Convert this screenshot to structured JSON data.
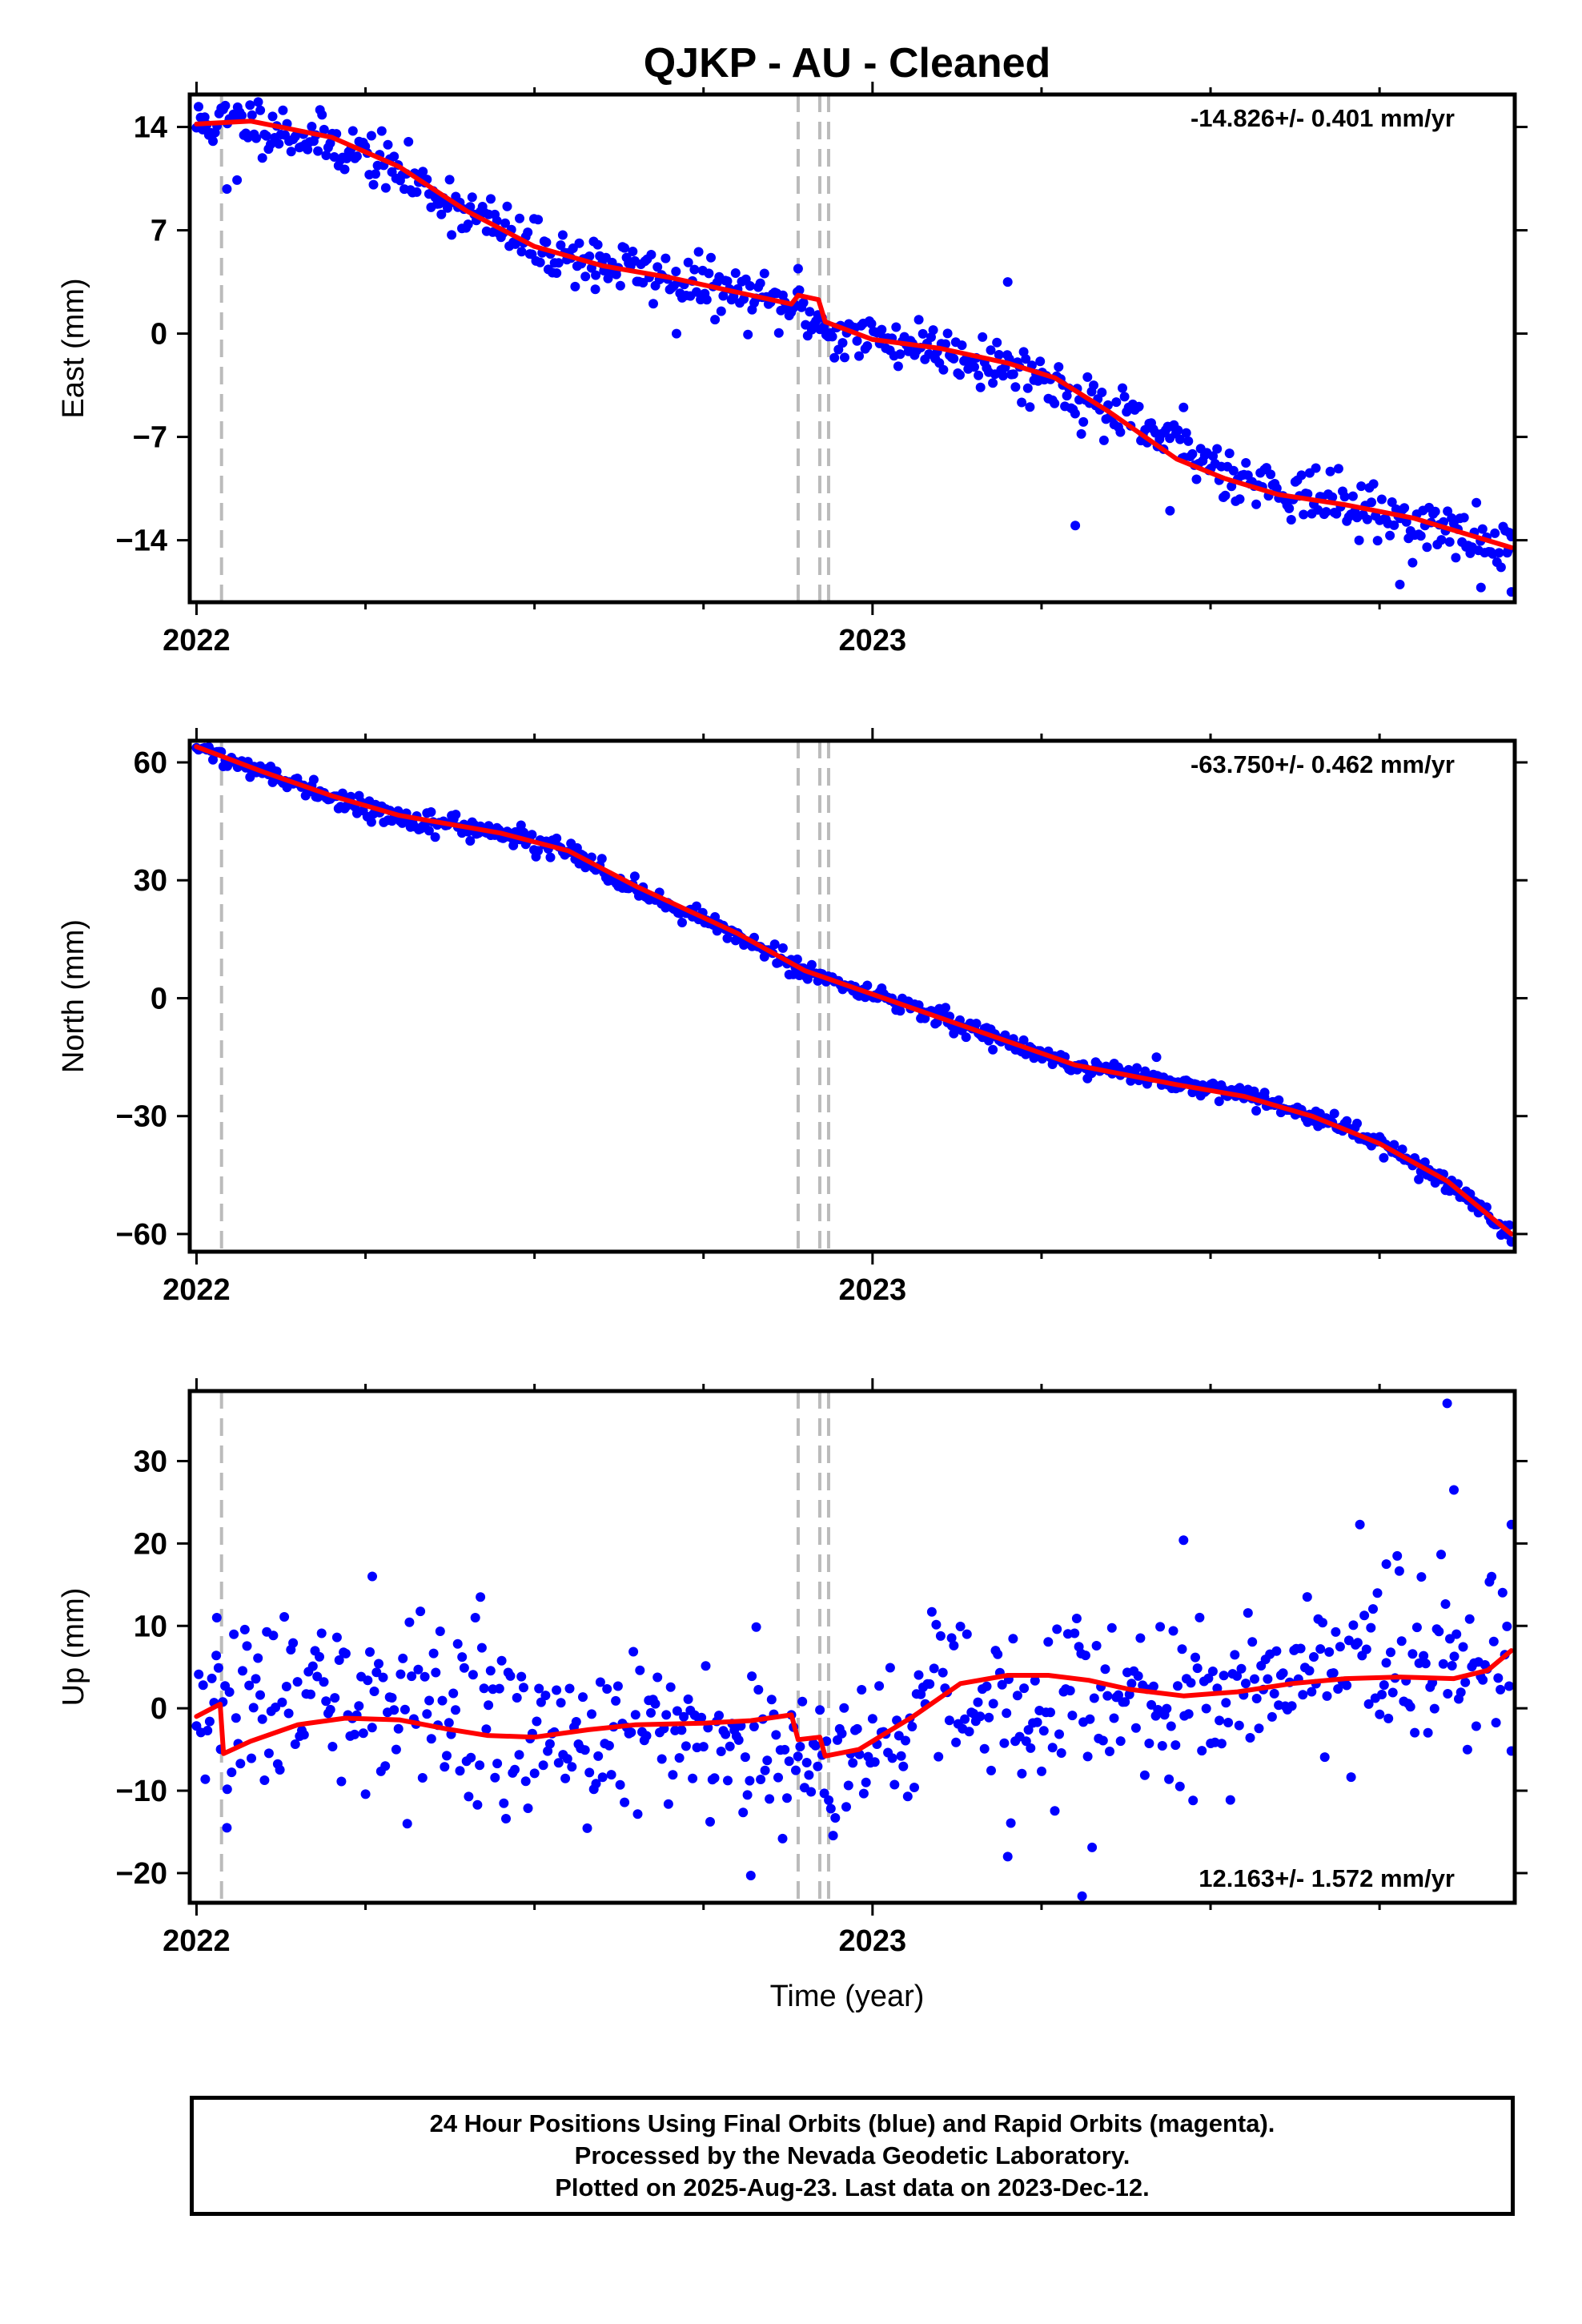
{
  "title": "QJKP  - AU - Cleaned",
  "xlabel": "Time (year)",
  "footer": {
    "line1": "24 Hour Positions Using Final Orbits (blue) and Rapid Orbits (magenta).",
    "line2": "Processed by the Nevada Geodetic Laboratory.",
    "line3": "Plotted on 2025-Aug-23. Last data on 2023-Dec-12."
  },
  "colors": {
    "final_orbits": "#0000ff",
    "model": "#ff0000",
    "event_lines": "#bbbbbb",
    "axes": "#000000"
  },
  "chart_data": [
    {
      "type": "scatter",
      "component": "east",
      "ylabel": "East (mm)",
      "rate_label": "-14.826+/- 0.401 mm/yr",
      "xlim": [
        2021.99,
        2023.95
      ],
      "ylim": [
        -18.2,
        16.2
      ],
      "yticks": [
        14,
        7,
        0,
        -7,
        -14
      ],
      "xticks": [
        2022,
        2023
      ],
      "event_lines": [
        2022.037,
        2022.89,
        2022.922,
        2022.935
      ],
      "rate": -14.826,
      "series": [
        {
          "kind": "points",
          "x_start": 2022.0,
          "x_end": 2023.945,
          "n": 640,
          "anchors": [
            [
              2022.0,
              14.2
            ],
            [
              2022.08,
              14.4
            ],
            [
              2022.25,
              12.2
            ],
            [
              2022.35,
              9.6
            ],
            [
              2022.5,
              5.8
            ],
            [
              2022.7,
              3.8
            ],
            [
              2022.9,
              1.5
            ],
            [
              2022.94,
              0.0
            ],
            [
              2023.1,
              -0.9
            ],
            [
              2023.25,
              -3.0
            ],
            [
              2023.4,
              -6.5
            ],
            [
              2023.55,
              -9.8
            ],
            [
              2023.7,
              -11.6
            ],
            [
              2023.945,
              -14.6
            ]
          ],
          "scatter_sd": 0.9,
          "seed": 11,
          "extra_points": [
            [
              2022.045,
              9.8
            ],
            [
              2022.06,
              10.4
            ],
            [
              2022.59,
              3.0
            ],
            [
              2022.71,
              0.0
            ],
            [
              2022.89,
              4.4
            ],
            [
              2023.2,
              3.5
            ],
            [
              2023.3,
              -13.0
            ],
            [
              2023.44,
              -12.0
            ],
            [
              2023.46,
              -5.0
            ],
            [
              2023.9,
              -17.2
            ],
            [
              2023.945,
              -17.5
            ],
            [
              2023.94,
              -14.7
            ],
            [
              2023.78,
              -17.0
            ]
          ]
        },
        {
          "kind": "model",
          "knots": [
            [
              2022.0,
              14.2
            ],
            [
              2022.08,
              14.4
            ],
            [
              2022.2,
              13.3
            ],
            [
              2022.3,
              11.3
            ],
            [
              2022.4,
              8.3
            ],
            [
              2022.5,
              5.9
            ],
            [
              2022.6,
              4.6
            ],
            [
              2022.7,
              3.8
            ],
            [
              2022.8,
              2.8
            ],
            [
              2022.88,
              2.0
            ],
            [
              2022.89,
              2.6
            ],
            [
              2022.92,
              2.3
            ],
            [
              2022.93,
              0.8
            ],
            [
              2023.0,
              -0.4
            ],
            [
              2023.1,
              -1.0
            ],
            [
              2023.2,
              -2.0
            ],
            [
              2023.27,
              -3.0
            ],
            [
              2023.35,
              -5.3
            ],
            [
              2023.45,
              -8.5
            ],
            [
              2023.52,
              -9.8
            ],
            [
              2023.6,
              -10.9
            ],
            [
              2023.7,
              -11.6
            ],
            [
              2023.8,
              -12.5
            ],
            [
              2023.945,
              -14.5
            ]
          ]
        }
      ]
    },
    {
      "type": "scatter",
      "component": "north",
      "ylabel": "North (mm)",
      "rate_label": "-63.750+/- 0.462 mm/yr",
      "xlim": [
        2021.99,
        2023.95
      ],
      "ylim": [
        -64.5,
        65.5
      ],
      "yticks": [
        60,
        30,
        0,
        -30,
        -60
      ],
      "xticks": [
        2022,
        2023
      ],
      "event_lines": [
        2022.037,
        2022.89,
        2022.922,
        2022.935
      ],
      "rate": -63.75,
      "series": [
        {
          "kind": "points",
          "x_start": 2022.0,
          "x_end": 2023.945,
          "n": 640,
          "anchors": [
            [
              2022.0,
              64.0
            ],
            [
              2022.1,
              57.0
            ],
            [
              2022.2,
              51.0
            ],
            [
              2022.3,
              46.0
            ],
            [
              2022.45,
              42.0
            ],
            [
              2022.55,
              37.0
            ],
            [
              2022.65,
              28.0
            ],
            [
              2022.8,
              16.0
            ],
            [
              2022.9,
              7.0
            ],
            [
              2023.0,
              1.0
            ],
            [
              2023.15,
              -8.0
            ],
            [
              2023.3,
              -17.0
            ],
            [
              2023.45,
              -22.0
            ],
            [
              2023.55,
              -25.0
            ],
            [
              2023.65,
              -30.0
            ],
            [
              2023.75,
              -37.0
            ],
            [
              2023.85,
              -47.0
            ],
            [
              2023.945,
              -60.0
            ]
          ],
          "scatter_sd": 1.2,
          "seed": 22,
          "extra_points": [
            [
              2022.48,
              44.0
            ],
            [
              2023.42,
              -15.0
            ],
            [
              2023.945,
              -62.0
            ],
            [
              2023.58,
              -24.0
            ]
          ]
        },
        {
          "kind": "model",
          "knots": [
            [
              2022.0,
              64.0
            ],
            [
              2022.1,
              57.5
            ],
            [
              2022.2,
              51.5
            ],
            [
              2022.3,
              46.5
            ],
            [
              2022.45,
              42.0
            ],
            [
              2022.55,
              37.5
            ],
            [
              2022.65,
              28.5
            ],
            [
              2022.8,
              16.5
            ],
            [
              2022.9,
              7.0
            ],
            [
              2023.0,
              1.0
            ],
            [
              2023.15,
              -8.0
            ],
            [
              2023.3,
              -17.0
            ],
            [
              2023.45,
              -22.0
            ],
            [
              2023.55,
              -25.0
            ],
            [
              2023.65,
              -30.0
            ],
            [
              2023.75,
              -37.0
            ],
            [
              2023.85,
              -46.5
            ],
            [
              2023.945,
              -60.0
            ]
          ]
        }
      ]
    },
    {
      "type": "scatter",
      "component": "up",
      "ylabel": "Up (mm)",
      "rate_label": "12.163+/- 1.572 mm/yr",
      "xlim": [
        2021.99,
        2023.95
      ],
      "ylim": [
        -23.6,
        38.5
      ],
      "yticks": [
        30,
        20,
        10,
        0,
        -10,
        -20
      ],
      "xticks": [
        2022,
        2023
      ],
      "event_lines": [
        2022.037,
        2022.89,
        2022.922,
        2022.935
      ],
      "rate": 12.163,
      "series": [
        {
          "kind": "points",
          "x_start": 2022.0,
          "x_end": 2023.945,
          "n": 600,
          "anchors": [
            [
              2022.0,
              -1.0
            ],
            [
              2022.15,
              0.5
            ],
            [
              2022.3,
              1.0
            ],
            [
              2022.45,
              -3.0
            ],
            [
              2022.6,
              -2.5
            ],
            [
              2022.75,
              -3.5
            ],
            [
              2022.88,
              -4.0
            ],
            [
              2022.95,
              -6.0
            ],
            [
              2023.1,
              2.0
            ],
            [
              2023.3,
              1.0
            ],
            [
              2023.5,
              1.0
            ],
            [
              2023.7,
              4.0
            ],
            [
              2023.945,
              7.0
            ]
          ],
          "scatter_sd": 5.0,
          "seed": 33,
          "extra_points": [
            [
              2022.03,
              11.0
            ],
            [
              2022.045,
              -14.5
            ],
            [
              2022.42,
              13.5
            ],
            [
              2022.26,
              16.0
            ],
            [
              2022.82,
              -20.3
            ],
            [
              2023.2,
              -18.0
            ],
            [
              2023.31,
              -22.8
            ],
            [
              2023.46,
              20.4
            ],
            [
              2023.85,
              37.0
            ],
            [
              2023.86,
              26.5
            ],
            [
              2023.945,
              22.3
            ],
            [
              2023.76,
              17.5
            ]
          ]
        },
        {
          "kind": "model",
          "knots": [
            [
              2022.0,
              -1.0
            ],
            [
              2022.035,
              0.5
            ],
            [
              2022.04,
              -5.5
            ],
            [
              2022.08,
              -4.0
            ],
            [
              2022.15,
              -2.0
            ],
            [
              2022.22,
              -1.2
            ],
            [
              2022.3,
              -1.4
            ],
            [
              2022.37,
              -2.5
            ],
            [
              2022.43,
              -3.3
            ],
            [
              2022.5,
              -3.5
            ],
            [
              2022.58,
              -2.6
            ],
            [
              2022.65,
              -2.0
            ],
            [
              2022.75,
              -1.8
            ],
            [
              2022.82,
              -1.5
            ],
            [
              2022.88,
              -0.8
            ],
            [
              2022.89,
              -3.8
            ],
            [
              2022.922,
              -3.5
            ],
            [
              2022.93,
              -5.8
            ],
            [
              2022.98,
              -5.0
            ],
            [
              2023.06,
              -1.0
            ],
            [
              2023.13,
              3.0
            ],
            [
              2023.2,
              4.0
            ],
            [
              2023.26,
              4.0
            ],
            [
              2023.32,
              3.4
            ],
            [
              2023.38,
              2.3
            ],
            [
              2023.46,
              1.5
            ],
            [
              2023.54,
              2.0
            ],
            [
              2023.62,
              3.0
            ],
            [
              2023.7,
              3.6
            ],
            [
              2023.78,
              3.8
            ],
            [
              2023.86,
              3.6
            ],
            [
              2023.91,
              4.6
            ],
            [
              2023.945,
              7.0
            ]
          ]
        }
      ]
    }
  ]
}
